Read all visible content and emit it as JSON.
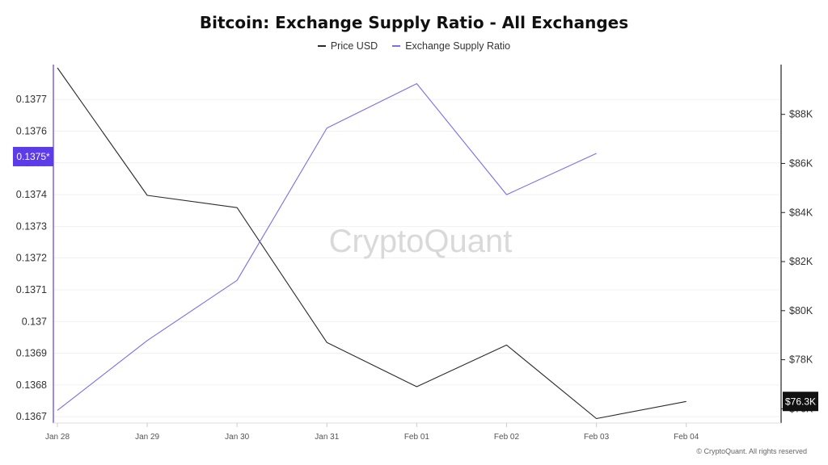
{
  "chart_data": {
    "type": "line",
    "title": "Bitcoin: Exchange Supply Ratio - All Exchanges",
    "watermark": "CryptoQuant",
    "copyright": "© CryptoQuant. All rights reserved",
    "categories": [
      "Jan 28",
      "Jan 29",
      "Jan 30",
      "Jan 31",
      "Feb 01",
      "Feb 02",
      "Feb 03",
      "Feb 04"
    ],
    "series": [
      {
        "name": "Price USD",
        "axis": "right",
        "color": "#2b2b2b",
        "values": [
          89900,
          84700,
          84200,
          78700,
          76900,
          78600,
          75600,
          76300
        ]
      },
      {
        "name": "Exchange Supply Ratio",
        "axis": "left",
        "color": "#7b6cf0",
        "values": [
          0.13672,
          0.13694,
          0.13713,
          0.13761,
          0.13775,
          0.1374,
          0.13753,
          null
        ]
      }
    ],
    "y_left": {
      "ticks": [
        0.1367,
        0.1368,
        0.1369,
        0.137,
        0.1371,
        0.1372,
        0.1373,
        0.1374,
        0.1375,
        0.1376,
        0.1377
      ],
      "tick_labels": [
        "0.1367",
        "0.1368",
        "0.1369",
        "0.137",
        "0.1371",
        "0.1372",
        "0.1373",
        "0.1374",
        "0.1375",
        "0.1376",
        "0.1377"
      ],
      "ylim": [
        0.13668,
        0.13781
      ],
      "current_label": "0.1375*",
      "current_value": 0.13752,
      "accent_color": "#5b3ce6"
    },
    "y_right": {
      "ticks": [
        76000,
        78000,
        80000,
        82000,
        84000,
        86000,
        88000
      ],
      "tick_labels": [
        "$76K",
        "$78K",
        "$80K",
        "$82K",
        "$84K",
        "$86K",
        "$88K"
      ],
      "ylim": [
        75420,
        90030
      ],
      "current_label": "$76.3K",
      "current_value": 76300
    },
    "grid": true,
    "legend_position": "top-center"
  }
}
